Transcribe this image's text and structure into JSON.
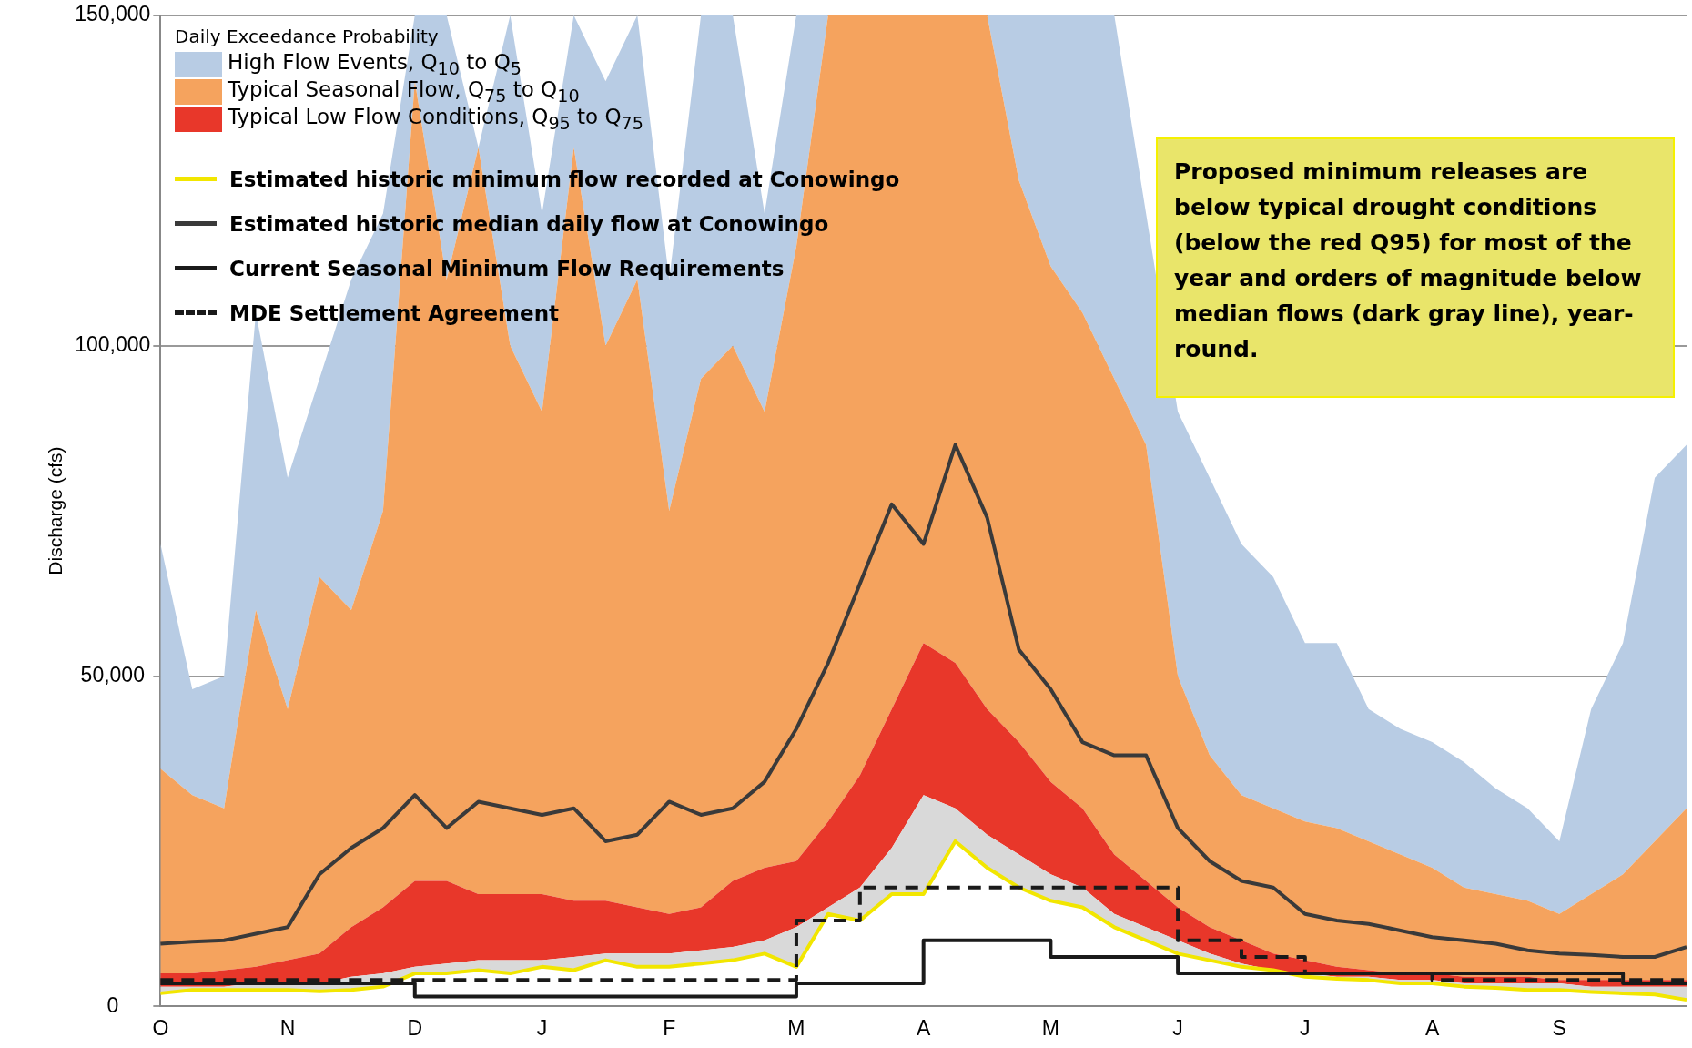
{
  "chart_data": {
    "type": "area",
    "ylabel": "Discharge (cfs)",
    "legend_title": "Daily Exceedance Probability",
    "legend": "top left",
    "grid": "y",
    "categories": [
      "O",
      null,
      null,
      null,
      "N",
      null,
      null,
      null,
      "D",
      null,
      null,
      null,
      "J",
      null,
      null,
      null,
      "F",
      null,
      null,
      null,
      "M",
      null,
      null,
      null,
      "A",
      null,
      null,
      null,
      "M",
      null,
      null,
      null,
      "J",
      null,
      null,
      null,
      "J",
      null,
      null,
      null,
      "A",
      null,
      null,
      null,
      "S",
      null,
      null,
      null,
      null
    ],
    "ylim": [
      0,
      150000
    ],
    "yticks": [
      {
        "value": 0,
        "label": "0"
      },
      {
        "value": 50000,
        "label": "50,000"
      },
      {
        "value": 100000,
        "label": "100,000"
      },
      {
        "value": 150000,
        "label": "150,000"
      }
    ],
    "annotations": [
      "Proposed minimum releases are below typical drought conditions (below the red Q95) for most of the year and orders of magnitude below median flows (dark gray line), year-round."
    ],
    "series": [
      {
        "name": "High Flow Events, Q$_{10}$ to Q$_{5}$",
        "color": "#b8cce4",
        "values": [
          70000,
          48000,
          50000,
          105000,
          80000,
          95000,
          110000,
          120000,
          150000,
          150000,
          130000,
          150000,
          120000,
          150000,
          140000,
          150000,
          110000,
          150000,
          150000,
          120000,
          150000,
          150000,
          150000,
          150000,
          150000,
          150000,
          150000,
          150000,
          150000,
          150000,
          150000,
          120000,
          90000,
          80000,
          70000,
          65000,
          55000,
          55000,
          45000,
          42000,
          40000,
          37000,
          33000,
          30000,
          25000,
          45000,
          55000,
          80000,
          85000
        ]
      },
      {
        "name": "Typical Seasonal Flow, Q$_{75}$ to Q$_{10}$",
        "color": "#f5a35e",
        "values": [
          36000,
          32000,
          30000,
          60000,
          45000,
          65000,
          60000,
          75000,
          140000,
          110000,
          130000,
          100000,
          90000,
          130000,
          100000,
          110000,
          75000,
          95000,
          100000,
          90000,
          115000,
          150000,
          150000,
          150000,
          150000,
          150000,
          150000,
          125000,
          112000,
          105000,
          95000,
          85000,
          50000,
          38000,
          32000,
          30000,
          28000,
          27000,
          25000,
          23000,
          21000,
          18000,
          17000,
          16000,
          14000,
          17000,
          20000,
          25000,
          30000
        ]
      },
      {
        "name": "Typical Low Flow Conditions, Q$_{95}$ to Q$_{75}$",
        "color": "#e8372a",
        "values": [
          5000,
          5000,
          5500,
          6000,
          7000,
          8000,
          12000,
          15000,
          19000,
          19000,
          17000,
          17000,
          17000,
          16000,
          16000,
          15000,
          14000,
          15000,
          19000,
          21000,
          22000,
          28000,
          35000,
          45000,
          55000,
          52000,
          45000,
          40000,
          34000,
          30000,
          23000,
          19000,
          15000,
          12000,
          10000,
          8000,
          7000,
          6000,
          5500,
          5000,
          5000,
          4500,
          4500,
          4500,
          4000,
          4000,
          4000,
          4000,
          4000
        ]
      },
      {
        "color": "#d9d9d9",
        "values": [
          3000,
          3000,
          3000,
          3500,
          3500,
          3500,
          4500,
          5000,
          6000,
          6500,
          7000,
          7000,
          7000,
          7500,
          8000,
          8000,
          8000,
          8500,
          9000,
          10000,
          12000,
          15000,
          18000,
          24000,
          32000,
          30000,
          26000,
          23000,
          20000,
          18000,
          14000,
          12000,
          10000,
          8000,
          6500,
          5500,
          5000,
          4500,
          4500,
          4000,
          4000,
          3500,
          3500,
          3500,
          3500,
          3000,
          3000,
          3000,
          3000
        ]
      },
      {
        "name": "Estimated historic minimum flow recorded at Conowingo",
        "type": "line",
        "color": "#f2e600",
        "values": [
          2000,
          2500,
          2500,
          2500,
          2500,
          2300,
          2500,
          3000,
          5000,
          5000,
          5500,
          5000,
          6000,
          5500,
          7000,
          6000,
          6000,
          6500,
          7000,
          8000,
          6000,
          14000,
          13000,
          17000,
          17000,
          25000,
          21000,
          18000,
          16000,
          15000,
          12000,
          10000,
          8000,
          7000,
          6000,
          5500,
          4500,
          4200,
          4000,
          3500,
          3500,
          3000,
          2800,
          2500,
          2500,
          2200,
          2000,
          1800,
          1000
        ]
      },
      {
        "name": "Estimated historic median daily flow at Conowingo",
        "type": "line",
        "color": "#3a3a3a",
        "values": [
          9500,
          9800,
          10000,
          11000,
          12000,
          20000,
          24000,
          27000,
          32000,
          27000,
          31000,
          30000,
          29000,
          30000,
          25000,
          26000,
          31000,
          29000,
          30000,
          34000,
          42000,
          52000,
          64000,
          76000,
          70000,
          85000,
          74000,
          54000,
          48000,
          40000,
          38000,
          38000,
          27000,
          22000,
          19000,
          18000,
          14000,
          13000,
          12500,
          11500,
          10500,
          10000,
          9500,
          8500,
          8000,
          7800,
          7500,
          7500,
          9000
        ]
      },
      {
        "name": "Current  Seasonal  Minimum Flow Requirements",
        "type": "step",
        "color": "#1a1a1a",
        "line_style": "solid",
        "values": [
          3500,
          3500,
          3500,
          3500,
          3500,
          3500,
          3500,
          3500,
          1500,
          1500,
          1500,
          1500,
          1500,
          1500,
          1500,
          1500,
          1500,
          1500,
          1500,
          1500,
          3500,
          3500,
          3500,
          3500,
          10000,
          10000,
          10000,
          10000,
          7500,
          7500,
          7500,
          7500,
          5000,
          5000,
          5000,
          5000,
          5000,
          5000,
          5000,
          5000,
          5000,
          5000,
          5000,
          5000,
          5000,
          5000,
          3500,
          3500,
          3500
        ]
      },
      {
        "name": "MDE Settlement Agreement",
        "type": "step",
        "color": "#1a1a1a",
        "line_style": "dashed",
        "values": [
          4000,
          4000,
          4000,
          4000,
          4000,
          4000,
          4000,
          4000,
          4000,
          4000,
          4000,
          4000,
          4000,
          4000,
          4000,
          4000,
          4000,
          4000,
          4000,
          4000,
          13000,
          13000,
          18000,
          18000,
          18000,
          18000,
          18000,
          18000,
          18000,
          18000,
          18000,
          18000,
          10000,
          10000,
          7500,
          7500,
          5000,
          5000,
          5000,
          5000,
          4000,
          4000,
          4000,
          4000,
          4000,
          4000,
          4000,
          4000,
          4000
        ]
      }
    ]
  }
}
